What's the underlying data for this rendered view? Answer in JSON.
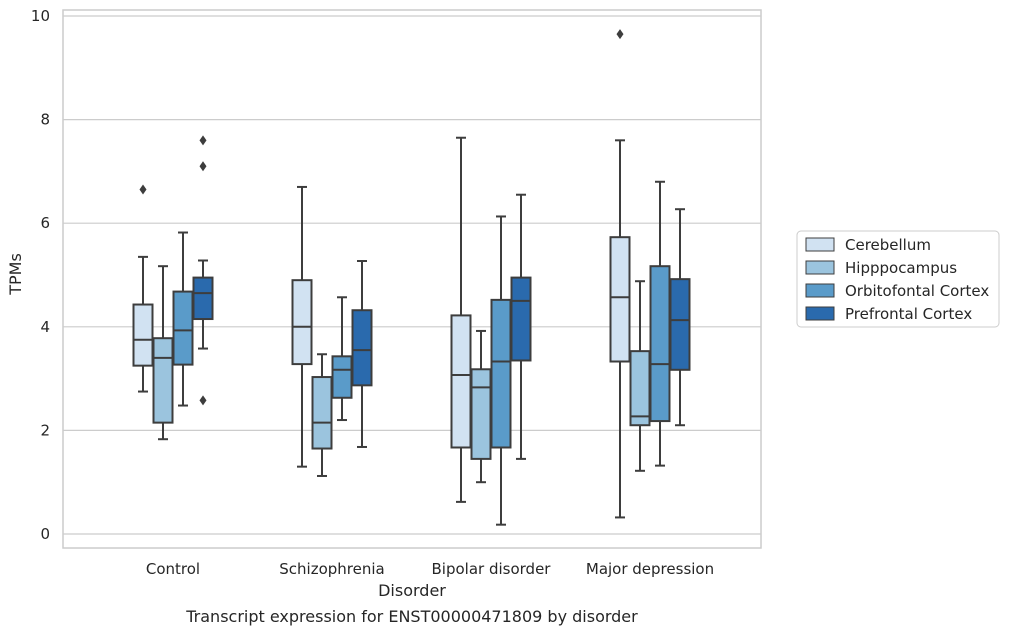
{
  "chart_data": {
    "type": "boxplot",
    "caption": "Transcript expression for ENST00000471809 by disorder",
    "xlabel": "Disorder",
    "ylabel": "TPMs",
    "ylim": [
      -0.25,
      10.1
    ],
    "yticks": [
      0,
      2,
      4,
      6,
      8,
      10
    ],
    "grid": "horizontal",
    "legend_position": "right",
    "categories": [
      "Control",
      "Schizophrenia",
      "Bipolar disorder",
      "Major depression"
    ],
    "series": [
      {
        "name": "Cerebellum",
        "color": "#d1e2f2",
        "boxes": [
          {
            "whisker_low": 2.75,
            "q1": 3.25,
            "median": 3.75,
            "q3": 4.43,
            "whisker_high": 5.35,
            "outliers": [
              6.65
            ]
          },
          {
            "whisker_low": 1.3,
            "q1": 3.28,
            "median": 4.0,
            "q3": 4.9,
            "whisker_high": 6.7,
            "outliers": []
          },
          {
            "whisker_low": 0.62,
            "q1": 1.67,
            "median": 3.07,
            "q3": 4.22,
            "whisker_high": 7.65,
            "outliers": []
          },
          {
            "whisker_low": 0.32,
            "q1": 3.33,
            "median": 4.57,
            "q3": 5.73,
            "whisker_high": 7.6,
            "outliers": [
              9.65
            ]
          }
        ]
      },
      {
        "name": "Hipppocampus",
        "color": "#9bc4de",
        "boxes": [
          {
            "whisker_low": 1.83,
            "q1": 2.15,
            "median": 3.4,
            "q3": 3.78,
            "whisker_high": 5.17,
            "outliers": []
          },
          {
            "whisker_low": 1.12,
            "q1": 1.65,
            "median": 2.15,
            "q3": 3.03,
            "whisker_high": 3.47,
            "outliers": []
          },
          {
            "whisker_low": 1.0,
            "q1": 1.45,
            "median": 2.83,
            "q3": 3.18,
            "whisker_high": 3.92,
            "outliers": []
          },
          {
            "whisker_low": 1.22,
            "q1": 2.1,
            "median": 2.27,
            "q3": 3.53,
            "whisker_high": 4.88,
            "outliers": []
          }
        ]
      },
      {
        "name": "Orbitofontal Cortex",
        "color": "#5a9bc9",
        "boxes": [
          {
            "whisker_low": 2.48,
            "q1": 3.27,
            "median": 3.93,
            "q3": 4.68,
            "whisker_high": 5.82,
            "outliers": []
          },
          {
            "whisker_low": 2.2,
            "q1": 2.63,
            "median": 3.17,
            "q3": 3.43,
            "whisker_high": 4.57,
            "outliers": []
          },
          {
            "whisker_low": 0.18,
            "q1": 1.67,
            "median": 3.33,
            "q3": 4.52,
            "whisker_high": 6.13,
            "outliers": []
          },
          {
            "whisker_low": 1.32,
            "q1": 2.18,
            "median": 3.28,
            "q3": 5.17,
            "whisker_high": 6.8,
            "outliers": []
          }
        ]
      },
      {
        "name": "Prefrontal Cortex",
        "color": "#2a6aad",
        "boxes": [
          {
            "whisker_low": 3.58,
            "q1": 4.15,
            "median": 4.65,
            "q3": 4.95,
            "whisker_high": 5.28,
            "outliers": [
              7.6,
              7.1,
              2.58
            ]
          },
          {
            "whisker_low": 1.68,
            "q1": 2.87,
            "median": 3.55,
            "q3": 4.32,
            "whisker_high": 5.27,
            "outliers": []
          },
          {
            "whisker_low": 1.45,
            "q1": 3.35,
            "median": 4.5,
            "q3": 4.95,
            "whisker_high": 6.55,
            "outliers": []
          },
          {
            "whisker_low": 2.1,
            "q1": 3.17,
            "median": 4.13,
            "q3": 4.92,
            "whisker_high": 6.27,
            "outliers": []
          }
        ]
      }
    ]
  }
}
